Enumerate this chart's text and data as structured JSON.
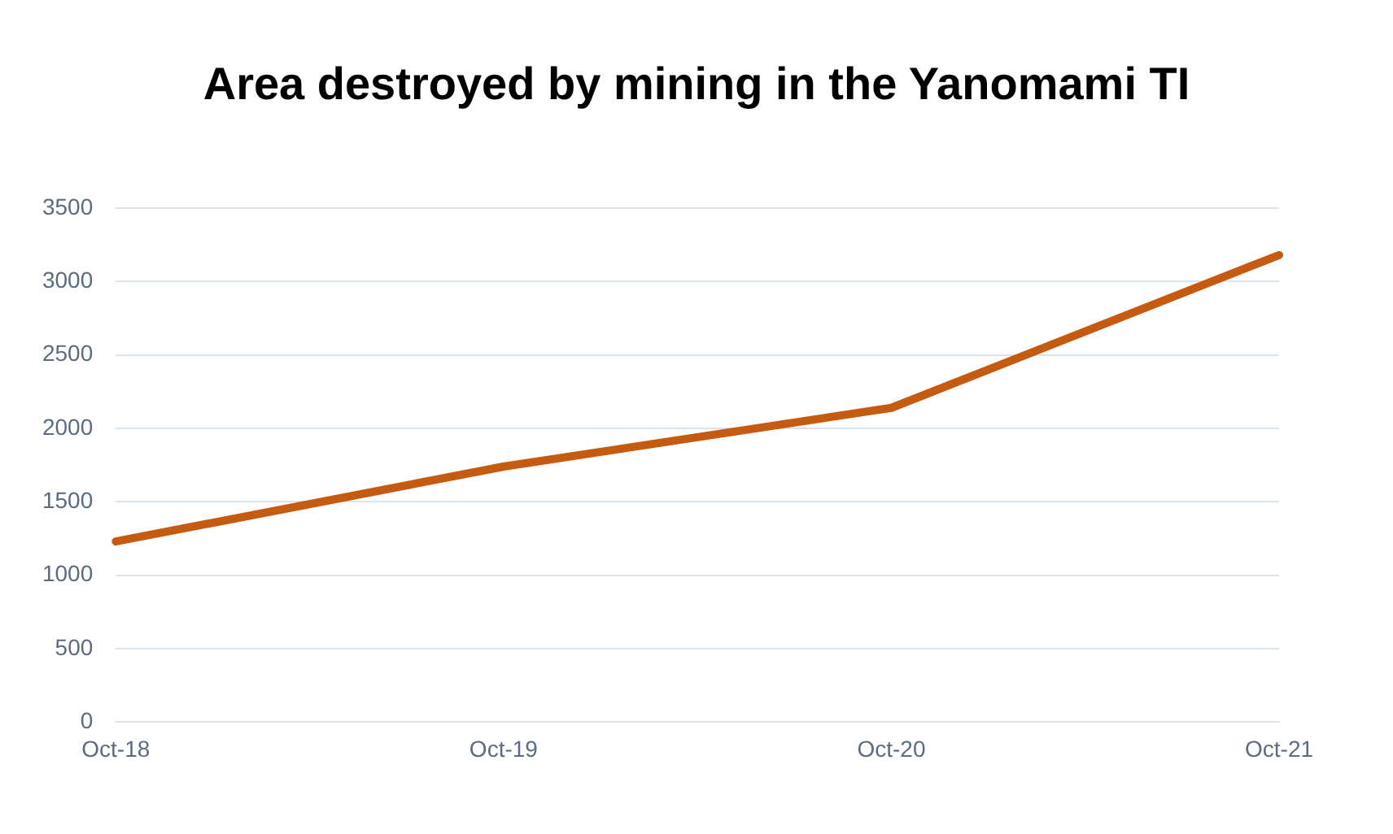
{
  "chart_data": {
    "type": "line",
    "title": "Area destroyed by mining in the Yanomami TI",
    "categories": [
      "Oct-18",
      "Oct-19",
      "Oct-20",
      "Oct-21"
    ],
    "series": [
      {
        "color": "#c55a11",
        "values": [
          1230,
          1740,
          2140,
          3180
        ]
      }
    ],
    "ylim": [
      0,
      3500
    ],
    "yticks": [
      0,
      500,
      1000,
      1500,
      2000,
      2500,
      3000,
      3500
    ],
    "grid": "y",
    "line_style": "solid"
  }
}
